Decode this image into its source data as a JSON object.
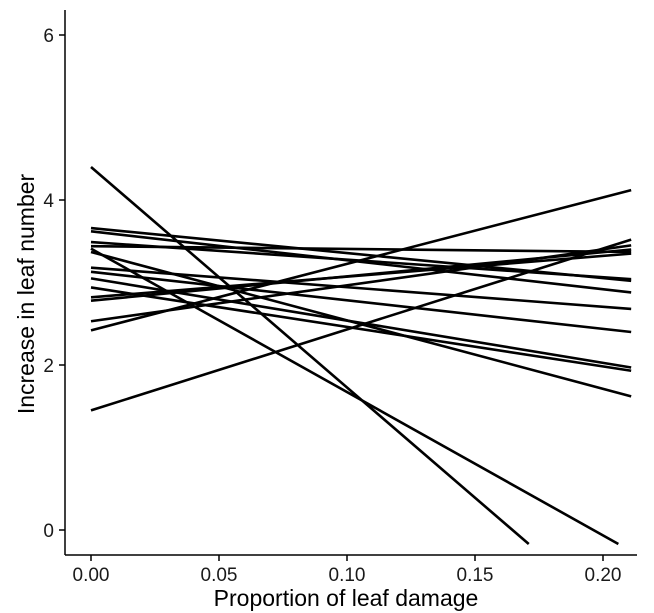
{
  "chart_data": {
    "type": "line",
    "title": "",
    "xlabel": "Proportion of leaf damage",
    "ylabel": "Increase in leaf number",
    "xlim": [
      -0.01,
      0.23
    ],
    "ylim": [
      -0.17,
      6.25
    ],
    "grid": false,
    "legend": "none",
    "line_color": "#000000",
    "x_ticks": [
      {
        "value": 0.0,
        "label": "0.00"
      },
      {
        "value": 0.05,
        "label": "0.05"
      },
      {
        "value": 0.1,
        "label": "0.10"
      },
      {
        "value": 0.15,
        "label": "0.15"
      },
      {
        "value": 0.2,
        "label": "0.20"
      }
    ],
    "y_ticks": [
      {
        "value": 0,
        "label": "0"
      },
      {
        "value": 2,
        "label": "2"
      },
      {
        "value": 4,
        "label": "4"
      },
      {
        "value": 6,
        "label": "6"
      }
    ],
    "series": [
      {
        "x": [
          0.0,
          0.171
        ],
        "y": [
          4.4,
          -0.17
        ]
      },
      {
        "x": [
          0.0,
          0.206
        ],
        "y": [
          3.41,
          -0.17
        ]
      },
      {
        "x": [
          0.0,
          0.211
        ],
        "y": [
          1.45,
          3.52
        ]
      },
      {
        "x": [
          0.0,
          0.211
        ],
        "y": [
          2.42,
          4.12
        ]
      },
      {
        "x": [
          0.0,
          0.211
        ],
        "y": [
          2.53,
          3.45
        ]
      },
      {
        "x": [
          0.0,
          0.211
        ],
        "y": [
          2.78,
          3.4
        ]
      },
      {
        "x": [
          0.0,
          0.211
        ],
        "y": [
          2.82,
          3.35
        ]
      },
      {
        "x": [
          0.0,
          0.211
        ],
        "y": [
          3.44,
          3.37
        ]
      },
      {
        "x": [
          0.0,
          0.211
        ],
        "y": [
          3.49,
          3.04
        ]
      },
      {
        "x": [
          0.0,
          0.211
        ],
        "y": [
          3.66,
          3.02
        ]
      },
      {
        "x": [
          0.0,
          0.211
        ],
        "y": [
          3.62,
          2.88
        ]
      },
      {
        "x": [
          0.0,
          0.211
        ],
        "y": [
          3.18,
          2.68
        ]
      },
      {
        "x": [
          0.0,
          0.211
        ],
        "y": [
          3.13,
          2.4
        ]
      },
      {
        "x": [
          0.0,
          0.211
        ],
        "y": [
          3.05,
          1.97
        ]
      },
      {
        "x": [
          0.0,
          0.211
        ],
        "y": [
          2.94,
          1.93
        ]
      },
      {
        "x": [
          0.0,
          0.211
        ],
        "y": [
          3.37,
          1.62
        ]
      }
    ]
  }
}
